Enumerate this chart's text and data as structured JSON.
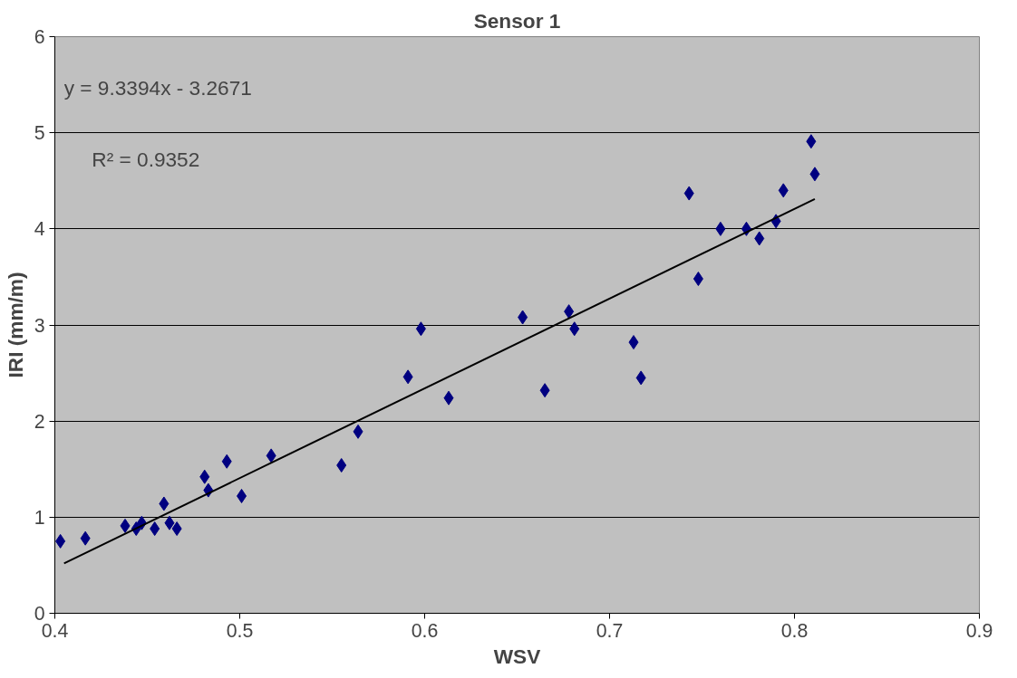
{
  "chart_data": {
    "type": "scatter",
    "title": "Sensor 1",
    "xlabel": "WSV",
    "ylabel": "IRI (mm/m)",
    "annotations": [
      "y = 9.3394x - 3.2671",
      "R² = 0.9352"
    ],
    "series": [
      {
        "color": "#000080",
        "marker": "diamond",
        "x": [
          0.403,
          0.4165,
          0.438,
          0.444,
          0.447,
          0.454,
          0.459,
          0.462,
          0.466,
          0.481,
          0.483,
          0.493,
          0.501,
          0.517,
          0.555,
          0.564,
          0.591,
          0.598,
          0.613,
          0.653,
          0.665,
          0.678,
          0.681,
          0.713,
          0.717,
          0.743,
          0.748,
          0.76,
          0.774,
          0.781,
          0.79,
          0.794,
          0.809,
          0.811
        ],
        "values": [
          0.75,
          0.78,
          0.91,
          0.88,
          0.94,
          0.88,
          1.14,
          0.94,
          0.88,
          1.42,
          1.28,
          1.58,
          1.22,
          1.64,
          1.54,
          1.89,
          2.46,
          2.96,
          2.24,
          3.08,
          2.32,
          3.14,
          2.96,
          2.82,
          2.45,
          4.37,
          3.48,
          4.0,
          4.0,
          3.9,
          4.08,
          4.4,
          4.91,
          4.57
        ]
      },
      {
        "type": "line",
        "color": "#000000",
        "line_style": "solid",
        "x": [
          0.405,
          0.811
        ],
        "values": [
          0.52,
          4.31
        ]
      }
    ],
    "xlim": [
      0.4,
      0.9
    ],
    "xticks": [
      0.4,
      0.5,
      0.6,
      0.7,
      0.8,
      0.9
    ],
    "ylim": [
      0,
      6
    ],
    "yticks": [
      0,
      1,
      2,
      3,
      4,
      5,
      6
    ],
    "grid": "y"
  }
}
